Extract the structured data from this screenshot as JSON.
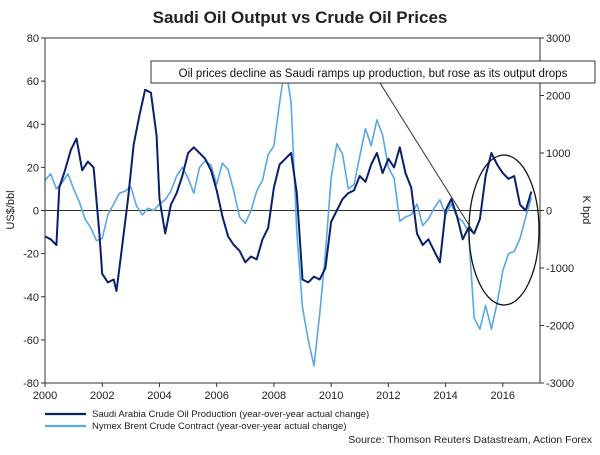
{
  "chart_data": {
    "type": "line",
    "title": "Saudi Oil Output vs Crude Oil Prices",
    "left_axis": {
      "label": "US$/bbl",
      "range": [
        -80,
        80
      ],
      "ticks": [
        -80,
        -60,
        -40,
        -20,
        0,
        20,
        40,
        60,
        80
      ]
    },
    "right_axis": {
      "label": "K bpd",
      "range": [
        -3000,
        3000
      ],
      "ticks": [
        -3000,
        -2000,
        -1000,
        0,
        1000,
        2000,
        3000
      ]
    },
    "x_axis": {
      "range": [
        2000,
        2017.3
      ],
      "ticks": [
        "2000",
        "2002",
        "2004",
        "2006",
        "2008",
        "2010",
        "2012",
        "2014",
        "2016"
      ]
    },
    "annotation": "Oil prices decline as Saudi ramps up production, but rose as its output drops",
    "source": "Source: Thomson Reuters Datastream, Action Forex",
    "series": [
      {
        "name": "Saudi Arabia Crude Oil Production (year-over-year actual change)",
        "axis": "right",
        "color": "#0a1f6e",
        "points": [
          [
            2000.0,
            -450
          ],
          [
            2000.2,
            -500
          ],
          [
            2000.4,
            -600
          ],
          [
            2000.5,
            400
          ],
          [
            2000.7,
            700
          ],
          [
            2000.9,
            1050
          ],
          [
            2001.1,
            1250
          ],
          [
            2001.3,
            700
          ],
          [
            2001.5,
            850
          ],
          [
            2001.7,
            750
          ],
          [
            2001.9,
            -400
          ],
          [
            2002.0,
            -1100
          ],
          [
            2002.2,
            -1250
          ],
          [
            2002.4,
            -1200
          ],
          [
            2002.5,
            -1400
          ],
          [
            2002.7,
            -600
          ],
          [
            2002.9,
            200
          ],
          [
            2003.1,
            1150
          ],
          [
            2003.3,
            1650
          ],
          [
            2003.5,
            2100
          ],
          [
            2003.7,
            2050
          ],
          [
            2003.9,
            1300
          ],
          [
            2004.0,
            200
          ],
          [
            2004.2,
            -400
          ],
          [
            2004.4,
            100
          ],
          [
            2004.6,
            300
          ],
          [
            2004.8,
            600
          ],
          [
            2005.0,
            1000
          ],
          [
            2005.2,
            1100
          ],
          [
            2005.4,
            1000
          ],
          [
            2005.6,
            900
          ],
          [
            2005.8,
            700
          ],
          [
            2006.0,
            350
          ],
          [
            2006.2,
            -100
          ],
          [
            2006.4,
            -450
          ],
          [
            2006.6,
            -600
          ],
          [
            2006.8,
            -700
          ],
          [
            2007.0,
            -900
          ],
          [
            2007.2,
            -800
          ],
          [
            2007.4,
            -850
          ],
          [
            2007.6,
            -500
          ],
          [
            2007.8,
            -300
          ],
          [
            2008.0,
            400
          ],
          [
            2008.2,
            800
          ],
          [
            2008.4,
            900
          ],
          [
            2008.6,
            1000
          ],
          [
            2008.8,
            300
          ],
          [
            2009.0,
            -1200
          ],
          [
            2009.2,
            -1250
          ],
          [
            2009.4,
            -1150
          ],
          [
            2009.6,
            -1200
          ],
          [
            2009.8,
            -1000
          ],
          [
            2010.0,
            -200
          ],
          [
            2010.2,
            0
          ],
          [
            2010.4,
            200
          ],
          [
            2010.6,
            300
          ],
          [
            2010.8,
            350
          ],
          [
            2011.0,
            600
          ],
          [
            2011.2,
            500
          ],
          [
            2011.4,
            800
          ],
          [
            2011.6,
            1000
          ],
          [
            2011.8,
            650
          ],
          [
            2012.0,
            900
          ],
          [
            2012.2,
            750
          ],
          [
            2012.4,
            1100
          ],
          [
            2012.6,
            650
          ],
          [
            2012.8,
            400
          ],
          [
            2013.0,
            -400
          ],
          [
            2013.2,
            -600
          ],
          [
            2013.4,
            -500
          ],
          [
            2013.6,
            -700
          ],
          [
            2013.8,
            -900
          ],
          [
            2014.0,
            0
          ],
          [
            2014.2,
            200
          ],
          [
            2014.4,
            -100
          ],
          [
            2014.6,
            -500
          ],
          [
            2014.8,
            -300
          ],
          [
            2015.0,
            -400
          ],
          [
            2015.2,
            -150
          ],
          [
            2015.4,
            600
          ],
          [
            2015.6,
            1000
          ],
          [
            2015.8,
            800
          ],
          [
            2016.0,
            650
          ],
          [
            2016.2,
            550
          ],
          [
            2016.4,
            600
          ],
          [
            2016.6,
            100
          ],
          [
            2016.8,
            0
          ],
          [
            2017.0,
            330
          ]
        ]
      },
      {
        "name": "Nymex Brent Crude Contract (year-over-year actual change)",
        "axis": "left",
        "color": "#5aa7e6",
        "points": [
          [
            2000.0,
            14
          ],
          [
            2000.2,
            17
          ],
          [
            2000.4,
            10
          ],
          [
            2000.6,
            13
          ],
          [
            2000.8,
            17
          ],
          [
            2001.0,
            10
          ],
          [
            2001.2,
            4
          ],
          [
            2001.4,
            -4
          ],
          [
            2001.6,
            -8
          ],
          [
            2001.8,
            -14
          ],
          [
            2002.0,
            -13
          ],
          [
            2002.2,
            -2
          ],
          [
            2002.4,
            3
          ],
          [
            2002.6,
            8
          ],
          [
            2002.8,
            9
          ],
          [
            2003.0,
            11
          ],
          [
            2003.2,
            2
          ],
          [
            2003.4,
            -2
          ],
          [
            2003.6,
            1
          ],
          [
            2003.8,
            0
          ],
          [
            2004.0,
            3
          ],
          [
            2004.2,
            5
          ],
          [
            2004.4,
            9
          ],
          [
            2004.6,
            16
          ],
          [
            2004.8,
            20
          ],
          [
            2005.0,
            15
          ],
          [
            2005.2,
            8
          ],
          [
            2005.4,
            20
          ],
          [
            2005.6,
            23
          ],
          [
            2005.8,
            21
          ],
          [
            2006.0,
            12
          ],
          [
            2006.2,
            22
          ],
          [
            2006.4,
            19
          ],
          [
            2006.6,
            9
          ],
          [
            2006.8,
            -3
          ],
          [
            2007.0,
            -6
          ],
          [
            2007.2,
            0
          ],
          [
            2007.4,
            9
          ],
          [
            2007.6,
            14
          ],
          [
            2007.8,
            26
          ],
          [
            2008.0,
            30
          ],
          [
            2008.2,
            50
          ],
          [
            2008.4,
            68
          ],
          [
            2008.6,
            50
          ],
          [
            2008.8,
            -10
          ],
          [
            2009.0,
            -45
          ],
          [
            2009.2,
            -60
          ],
          [
            2009.4,
            -72
          ],
          [
            2009.6,
            -48
          ],
          [
            2009.8,
            -20
          ],
          [
            2010.0,
            15
          ],
          [
            2010.2,
            31
          ],
          [
            2010.4,
            26
          ],
          [
            2010.6,
            10
          ],
          [
            2010.8,
            12
          ],
          [
            2011.0,
            25
          ],
          [
            2011.2,
            38
          ],
          [
            2011.4,
            30
          ],
          [
            2011.6,
            42
          ],
          [
            2011.8,
            35
          ],
          [
            2012.0,
            20
          ],
          [
            2012.2,
            15
          ],
          [
            2012.4,
            -5
          ],
          [
            2012.6,
            -3
          ],
          [
            2012.8,
            -2
          ],
          [
            2013.0,
            3
          ],
          [
            2013.2,
            -7
          ],
          [
            2013.4,
            -4
          ],
          [
            2013.6,
            1
          ],
          [
            2013.8,
            5
          ],
          [
            2014.0,
            -2
          ],
          [
            2014.2,
            3
          ],
          [
            2014.4,
            -3
          ],
          [
            2014.6,
            -5
          ],
          [
            2014.8,
            -10
          ],
          [
            2015.0,
            -50
          ],
          [
            2015.2,
            -55
          ],
          [
            2015.4,
            -44
          ],
          [
            2015.6,
            -55
          ],
          [
            2015.8,
            -43
          ],
          [
            2016.0,
            -28
          ],
          [
            2016.2,
            -20
          ],
          [
            2016.4,
            -19
          ],
          [
            2016.6,
            -13
          ],
          [
            2016.8,
            -3
          ],
          [
            2017.0,
            6
          ]
        ]
      }
    ]
  }
}
